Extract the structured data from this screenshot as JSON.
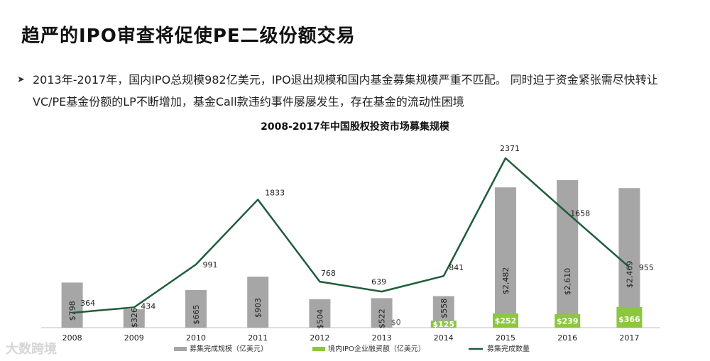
{
  "page": {
    "title": "趋严的IPO审查将促使PE二级份额交易",
    "bullet": "2013年-2017年，国内IPO总规模982亿美元，IPO退出规模和国内基金募集规模严重不匹配。 同时迫于资金紧张需尽快转让VC/PE基金份额的LP不断增加，基金Call款违约事件屡屡发生，存在基金的流动性困境",
    "watermark": "大数跨境"
  },
  "chart_data": {
    "type": "bar",
    "title": "2008-2017年中国股权投资市场募集规模",
    "categories": [
      "2008",
      "2009",
      "2010",
      "2011",
      "2012",
      "2013",
      "2014",
      "2015",
      "2016",
      "2017"
    ],
    "series": [
      {
        "name": "募集完成规模（亿美元）",
        "type": "bar",
        "values": [
          798,
          326,
          665,
          903,
          504,
          522,
          558,
          2482,
          2610,
          2469
        ],
        "labels": [
          "$798",
          "$326",
          "$665",
          "$903",
          "$504",
          "$522",
          "$558",
          "$2,482",
          "$2,610",
          "$2,469"
        ],
        "color": "#a6a6a6"
      },
      {
        "name": "境内IPO企业融资额（亿美元）",
        "type": "bar",
        "values": [
          null,
          null,
          null,
          null,
          null,
          0,
          125,
          252,
          239,
          366
        ],
        "labels": [
          "",
          "",
          "",
          "",
          "",
          "$0",
          "$125",
          "$252",
          "$239",
          "$366"
        ],
        "color": "#8dc63f"
      },
      {
        "name": "募集完成数量",
        "type": "line",
        "values": [
          364,
          434,
          991,
          1833,
          768,
          639,
          841,
          2371,
          1658,
          955
        ],
        "color": "#1f5c3a"
      }
    ],
    "legend": "bottom",
    "grid": false
  }
}
